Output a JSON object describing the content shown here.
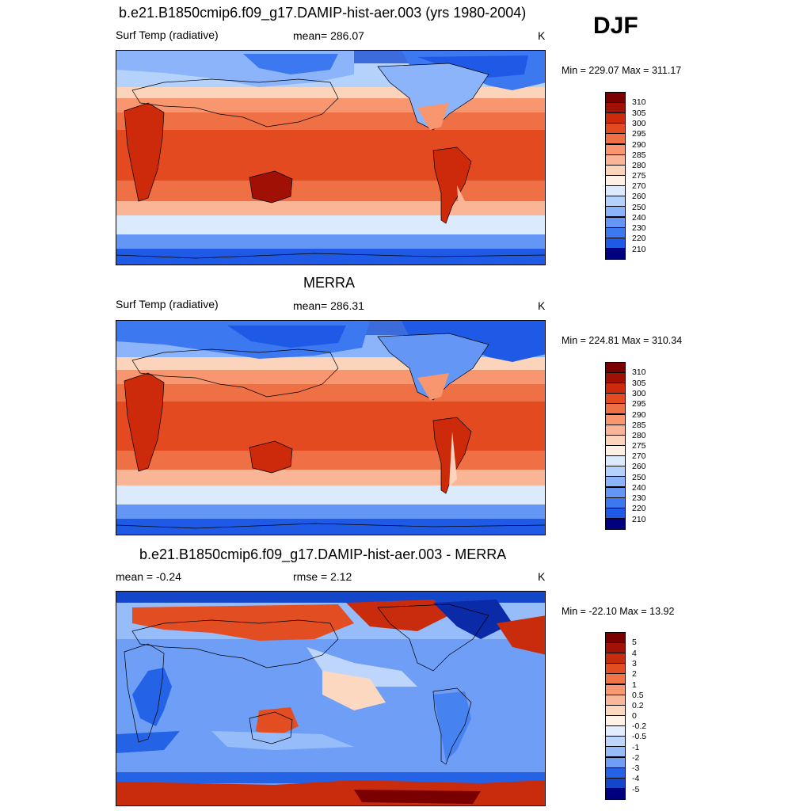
{
  "season": "DJF",
  "colors": {
    "abs_scale": [
      "#00007f",
      "#0020b0",
      "#0a3ccc",
      "#1e5ae6",
      "#3c78f0",
      "#6496f5",
      "#8cb4fa",
      "#b4d2fc",
      "#dceafe",
      "#fff0e6",
      "#fcd4bc",
      "#fab496",
      "#f89670",
      "#f07046",
      "#e44a20",
      "#cc2a0a",
      "#a01004",
      "#7a0000"
    ],
    "diff_scale": [
      "#00007f",
      "#0a2aa8",
      "#1446cc",
      "#2462e6",
      "#4682f0",
      "#6e9ef5",
      "#96bcfa",
      "#bed6fc",
      "#e2edfe",
      "#fff2e6",
      "#fcd8c0",
      "#fab89a",
      "#f89870",
      "#f07446",
      "#e24e22",
      "#c82c0c",
      "#a01206",
      "#7a0000"
    ]
  },
  "panels": [
    {
      "title": "b.e21.B1850cmip6.f09_g17.DAMIP-hist-aer.003 (yrs 1980-2004)",
      "left_label": "Surf Temp (radiative)",
      "center_label": "mean= 286.07",
      "units": "K",
      "minmax": "Min = 229.07 Max = 311.17"
    },
    {
      "title": "MERRA",
      "left_label": "Surf Temp (radiative)",
      "center_label": "mean= 286.31",
      "units": "K",
      "minmax": "Min = 224.81 Max = 310.34"
    },
    {
      "title": "b.e21.B1850cmip6.f09_g17.DAMIP-hist-aer.003 - MERRA",
      "left_label": "mean =  -0.24",
      "center_label": "rmse =   2.12",
      "units": "K",
      "minmax": "Min = -22.10 Max =  13.92"
    }
  ],
  "chart_data": [
    {
      "type": "heatmap",
      "title": "b.e21.B1850cmip6.f09_g17.DAMIP-hist-aer.003 (yrs 1980-2004)",
      "variable": "Surf Temp (radiative)",
      "units": "K",
      "mean": 286.07,
      "min": 229.07,
      "max": 311.17,
      "colorbar_levels": [
        "310",
        "305",
        "300",
        "295",
        "290",
        "285",
        "280",
        "275",
        "270",
        "260",
        "250",
        "240",
        "230",
        "220",
        "210"
      ]
    },
    {
      "type": "heatmap",
      "title": "MERRA",
      "variable": "Surf Temp (radiative)",
      "units": "K",
      "mean": 286.31,
      "min": 224.81,
      "max": 310.34,
      "colorbar_levels": [
        "310",
        "305",
        "300",
        "295",
        "290",
        "285",
        "280",
        "275",
        "270",
        "260",
        "250",
        "240",
        "230",
        "220",
        "210"
      ]
    },
    {
      "type": "heatmap",
      "title": "b.e21.B1850cmip6.f09_g17.DAMIP-hist-aer.003 - MERRA",
      "units": "K",
      "mean": -0.24,
      "rmse": 2.12,
      "min": -22.1,
      "max": 13.92,
      "colorbar_levels": [
        "5",
        "4",
        "3",
        "2",
        "1",
        "0.5",
        "0.2",
        "0",
        "-0.2",
        "-0.5",
        "-1",
        "-2",
        "-3",
        "-4",
        "-5"
      ]
    }
  ]
}
